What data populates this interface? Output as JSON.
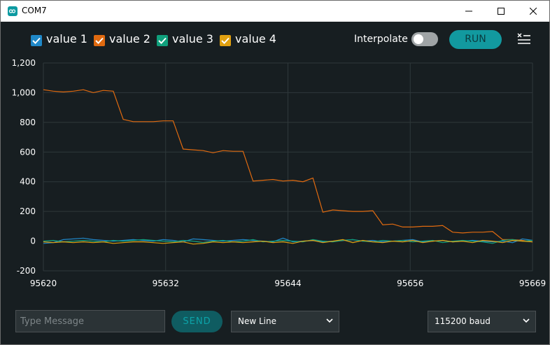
{
  "window": {
    "title": "COM7"
  },
  "legend": [
    {
      "label": "value 1",
      "color": "#1f88c8",
      "checked": true
    },
    {
      "label": "value 2",
      "color": "#e06a10",
      "checked": true
    },
    {
      "label": "value 3",
      "color": "#10a07c",
      "checked": true
    },
    {
      "label": "value 4",
      "color": "#e0a010",
      "checked": true
    }
  ],
  "controls": {
    "interpolate_label": "Interpolate",
    "interpolate_on": false,
    "run_label": "RUN"
  },
  "chart_data": {
    "type": "line",
    "ylim": [
      -200,
      1200
    ],
    "xlim": [
      95620,
      95669
    ],
    "y_ticks": [
      "1,200",
      "1,000",
      "800",
      "600",
      "400",
      "200",
      "0",
      "-200"
    ],
    "x_ticks": [
      "95620",
      "95632",
      "95644",
      "95656",
      "95669"
    ],
    "grid": true,
    "series": [
      {
        "name": "value 1",
        "color": "#1f88c8",
        "x": [
          95620,
          95621,
          95622,
          95623,
          95624,
          95625,
          95626,
          95627,
          95628,
          95629,
          95630,
          95631,
          95632,
          95633,
          95634,
          95635,
          95636,
          95637,
          95638,
          95639,
          95640,
          95641,
          95642,
          95643,
          95644,
          95645,
          95646,
          95647,
          95648,
          95649,
          95650,
          95651,
          95652,
          95653,
          95654,
          95655,
          95656,
          95657,
          95658,
          95659,
          95660,
          95661,
          95662,
          95663,
          95664,
          95665,
          95666,
          95667,
          95668,
          95669
        ],
        "values": [
          -15,
          -10,
          10,
          15,
          20,
          10,
          5,
          0,
          5,
          10,
          5,
          0,
          10,
          5,
          -5,
          15,
          10,
          5,
          0,
          5,
          10,
          5,
          0,
          -5,
          20,
          -5,
          0,
          5,
          -5,
          0,
          5,
          10,
          0,
          5,
          -5,
          0,
          5,
          10,
          -5,
          0,
          5,
          -5,
          0,
          5,
          0,
          -5,
          0,
          -10,
          15,
          5
        ]
      },
      {
        "name": "value 2",
        "color": "#e06a10",
        "x": [
          95620,
          95621,
          95622,
          95623,
          95624,
          95625,
          95626,
          95627,
          95628,
          95629,
          95630,
          95631,
          95632,
          95633,
          95634,
          95635,
          95636,
          95637,
          95638,
          95639,
          95640,
          95641,
          95642,
          95643,
          95644,
          95645,
          95646,
          95647,
          95648,
          95649,
          95650,
          95651,
          95652,
          95653,
          95654,
          95655,
          95656,
          95657,
          95658,
          95659,
          95660,
          95661,
          95662,
          95663,
          95664,
          95665,
          95666,
          95667,
          95668,
          95669
        ],
        "values": [
          1020,
          1010,
          1005,
          1010,
          1020,
          1000,
          1015,
          1010,
          820,
          805,
          805,
          805,
          810,
          810,
          620,
          615,
          610,
          595,
          610,
          605,
          605,
          405,
          410,
          415,
          405,
          410,
          400,
          425,
          195,
          210,
          205,
          200,
          200,
          205,
          110,
          115,
          95,
          95,
          100,
          100,
          105,
          60,
          55,
          60,
          60,
          65,
          10,
          10,
          5,
          -5
        ]
      },
      {
        "name": "value 3",
        "color": "#10a07c",
        "x": [
          95620,
          95621,
          95622,
          95623,
          95624,
          95625,
          95626,
          95627,
          95628,
          95629,
          95630,
          95631,
          95632,
          95633,
          95634,
          95635,
          95636,
          95637,
          95638,
          95639,
          95640,
          95641,
          95642,
          95643,
          95644,
          95645,
          95646,
          95647,
          95648,
          95649,
          95650,
          95651,
          95652,
          95653,
          95654,
          95655,
          95656,
          95657,
          95658,
          95659,
          95660,
          95661,
          95662,
          95663,
          95664,
          95665,
          95666,
          95667,
          95668,
          95669
        ],
        "values": [
          0,
          5,
          -5,
          0,
          5,
          0,
          -5,
          5,
          0,
          5,
          10,
          5,
          0,
          -5,
          5,
          0,
          -10,
          0,
          5,
          -5,
          0,
          10,
          -5,
          0,
          5,
          0,
          -5,
          10,
          0,
          -5,
          5,
          10,
          0,
          -5,
          5,
          0,
          5,
          -5,
          0,
          5,
          -10,
          0,
          5,
          0,
          -5,
          -15,
          5,
          10,
          0,
          5
        ]
      },
      {
        "name": "value 4",
        "color": "#e0a010",
        "x": [
          95620,
          95621,
          95622,
          95623,
          95624,
          95625,
          95626,
          95627,
          95628,
          95629,
          95630,
          95631,
          95632,
          95633,
          95634,
          95635,
          95636,
          95637,
          95638,
          95639,
          95640,
          95641,
          95642,
          95643,
          95644,
          95645,
          95646,
          95647,
          95648,
          95649,
          95650,
          95651,
          95652,
          95653,
          95654,
          95655,
          95656,
          95657,
          95658,
          95659,
          95660,
          95661,
          95662,
          95663,
          95664,
          95665,
          95666,
          95667,
          95668,
          95669
        ],
        "values": [
          -5,
          -10,
          -5,
          -10,
          -5,
          -10,
          -5,
          -15,
          -10,
          -5,
          -5,
          -10,
          -15,
          -10,
          -5,
          -20,
          -15,
          -5,
          -10,
          -5,
          -10,
          -5,
          0,
          -10,
          -5,
          -15,
          0,
          5,
          -10,
          0,
          10,
          -10,
          5,
          -5,
          -10,
          0,
          -5,
          5,
          -10,
          0,
          5,
          -5,
          0,
          -10,
          5,
          0,
          -10,
          5,
          0,
          -5
        ]
      }
    ]
  },
  "footer": {
    "message_placeholder": "Type Message",
    "send_label": "SEND",
    "line_ending": "New Line",
    "baud": "115200 baud"
  }
}
